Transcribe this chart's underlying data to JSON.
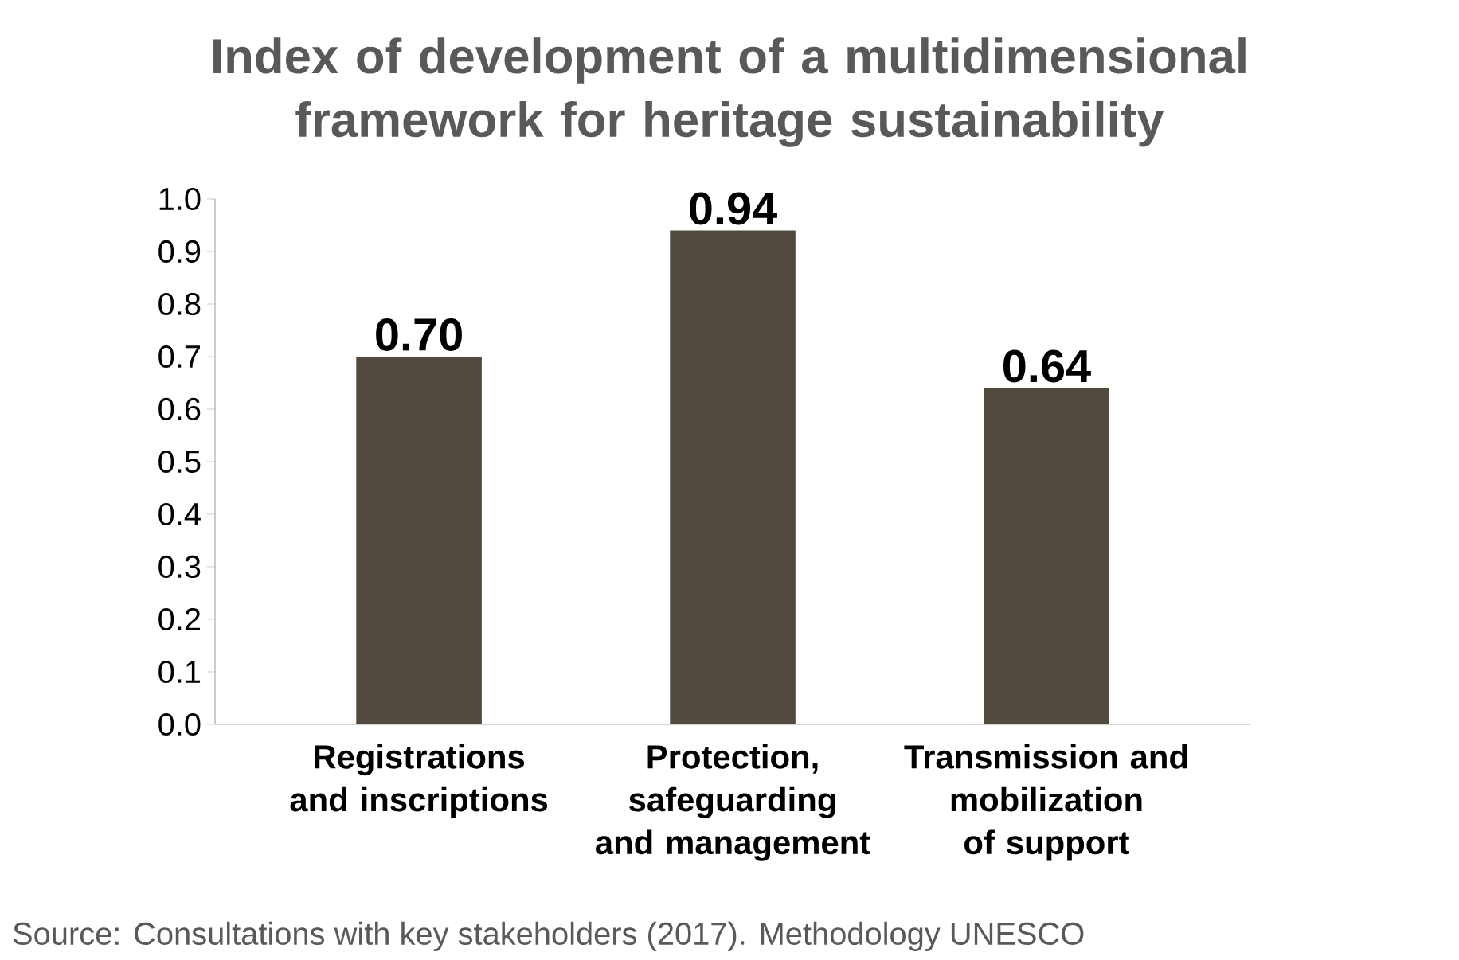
{
  "chart_data": {
    "type": "bar",
    "title": "Index of development of a multidimensional framework for heritage sustainability",
    "categories": [
      "Registrations and inscriptions",
      "Protection, safeguarding and management",
      "Transmission and mobilization of support"
    ],
    "values": [
      0.7,
      0.94,
      0.64
    ],
    "value_labels": [
      "0.70",
      "0.94",
      "0.64"
    ],
    "color": "#524a3e",
    "ylim": [
      0,
      1
    ],
    "yticks": [
      {
        "value": 0,
        "label": "0.0"
      },
      {
        "value": 0.1,
        "label": "0.1"
      },
      {
        "value": 0.2,
        "label": "0.2"
      },
      {
        "value": 0.3,
        "label": "0.3"
      },
      {
        "value": 0.4,
        "label": "0.4"
      },
      {
        "value": 0.5,
        "label": "0.5"
      },
      {
        "value": 0.6,
        "label": "0.6"
      },
      {
        "value": 0.7,
        "label": "0.7"
      },
      {
        "value": 0.8,
        "label": "0.8"
      },
      {
        "value": 0.9,
        "label": "0.9"
      },
      {
        "value": 1,
        "label": "1.0"
      }
    ],
    "grid": false,
    "annotations": [
      "Source: Consultations with key stakeholders (2017). Methodology UNESCO"
    ]
  }
}
